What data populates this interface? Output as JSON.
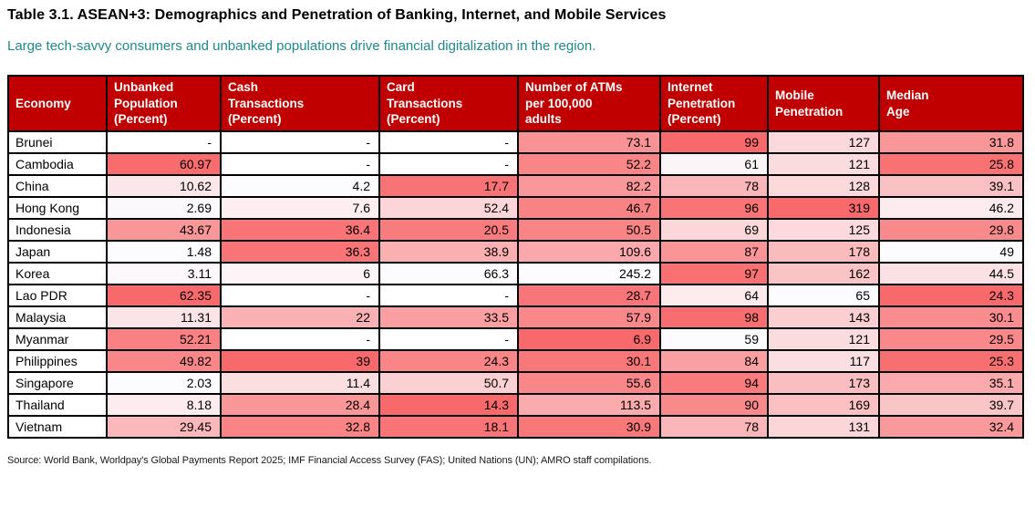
{
  "title": "Table 3.1. ASEAN+3: Demographics and Penetration of Banking, Internet, and Mobile Services",
  "subtitle": "Large tech-savvy consumers and unbanked populations drive financial digitalization in the region.",
  "source": "Source: World Bank, Worldpay's Global Payments Report 2025; IMF Financial Access Survey (FAS); United Nations (UN); AMRO staff compilations.",
  "colors": {
    "header_bg": "#C00000",
    "header_text": "#FFFFFF",
    "heat_red": "#F8696B",
    "heat_white": "#FCFCFF",
    "empty_cell": "#FFFFFF",
    "border": "#000000",
    "title_text": "#000000",
    "subtitle_text": "#1B8A8F",
    "source_text": "#1A1A1A"
  },
  "chart_data": {
    "type": "table",
    "subtype": "heatmap-table",
    "title": "Table 3.1. ASEAN+3: Demographics and Penetration of Banking, Internet, and Mobile Services",
    "legend_position": "none",
    "grid": true,
    "missing_value_marker": "-",
    "heat_scale": {
      "strong": "#F8696B",
      "weak": "#FCFCFF",
      "note": "per-column linear scale between min and max"
    },
    "columns": [
      {
        "label": "Economy",
        "heat": "none"
      },
      {
        "label": "Unbanked\nPopulation\n(Percent)",
        "heat": "high-red"
      },
      {
        "label": "Cash\nTransactions\n(Percent)",
        "heat": "high-red"
      },
      {
        "label": "Card\nTransactions\n(Percent)",
        "heat": "low-red"
      },
      {
        "label": "Number of ATMs\nper 100,000\nadults",
        "heat": "low-red"
      },
      {
        "label": "Internet\nPenetration\n(Percent)",
        "heat": "high-red"
      },
      {
        "label": "Mobile\nPenetration",
        "heat": "high-red"
      },
      {
        "label": "Median\nAge",
        "heat": "low-red"
      }
    ],
    "rows": [
      {
        "economy": "Brunei",
        "values": [
          "-",
          "-",
          "-",
          "73.1",
          "99",
          "127",
          "31.8"
        ]
      },
      {
        "economy": "Cambodia",
        "values": [
          "60.97",
          "-",
          "-",
          "52.2",
          "61",
          "121",
          "25.8"
        ]
      },
      {
        "economy": "China",
        "values": [
          "10.62",
          "4.2",
          "17.7",
          "82.2",
          "78",
          "128",
          "39.1"
        ]
      },
      {
        "economy": "Hong Kong",
        "values": [
          "2.69",
          "7.6",
          "52.4",
          "46.7",
          "96",
          "319",
          "46.2"
        ]
      },
      {
        "economy": "Indonesia",
        "values": [
          "43.67",
          "36.4",
          "20.5",
          "50.5",
          "69",
          "125",
          "29.8"
        ]
      },
      {
        "economy": "Japan",
        "values": [
          "1.48",
          "36.3",
          "38.9",
          "109.6",
          "87",
          "178",
          "49"
        ]
      },
      {
        "economy": "Korea",
        "values": [
          "3.11",
          "6",
          "66.3",
          "245.2",
          "97",
          "162",
          "44.5"
        ]
      },
      {
        "economy": "Lao PDR",
        "values": [
          "62.35",
          "-",
          "-",
          "28.7",
          "64",
          "65",
          "24.3"
        ]
      },
      {
        "economy": "Malaysia",
        "values": [
          "11.31",
          "22",
          "33.5",
          "57.9",
          "98",
          "143",
          "30.1"
        ]
      },
      {
        "economy": "Myanmar",
        "values": [
          "52.21",
          "-",
          "-",
          "6.9",
          "59",
          "121",
          "29.5"
        ]
      },
      {
        "economy": "Philippines",
        "values": [
          "49.82",
          "39",
          "24.3",
          "30.1",
          "84",
          "117",
          "25.3"
        ]
      },
      {
        "economy": "Singapore",
        "values": [
          "2.03",
          "11.4",
          "50.7",
          "55.6",
          "94",
          "173",
          "35.1"
        ]
      },
      {
        "economy": "Thailand",
        "values": [
          "8.18",
          "28.4",
          "14.3",
          "113.5",
          "90",
          "169",
          "39.7"
        ]
      },
      {
        "economy": "Vietnam",
        "values": [
          "29.45",
          "32.8",
          "18.1",
          "30.9",
          "78",
          "131",
          "32.4"
        ]
      }
    ]
  }
}
